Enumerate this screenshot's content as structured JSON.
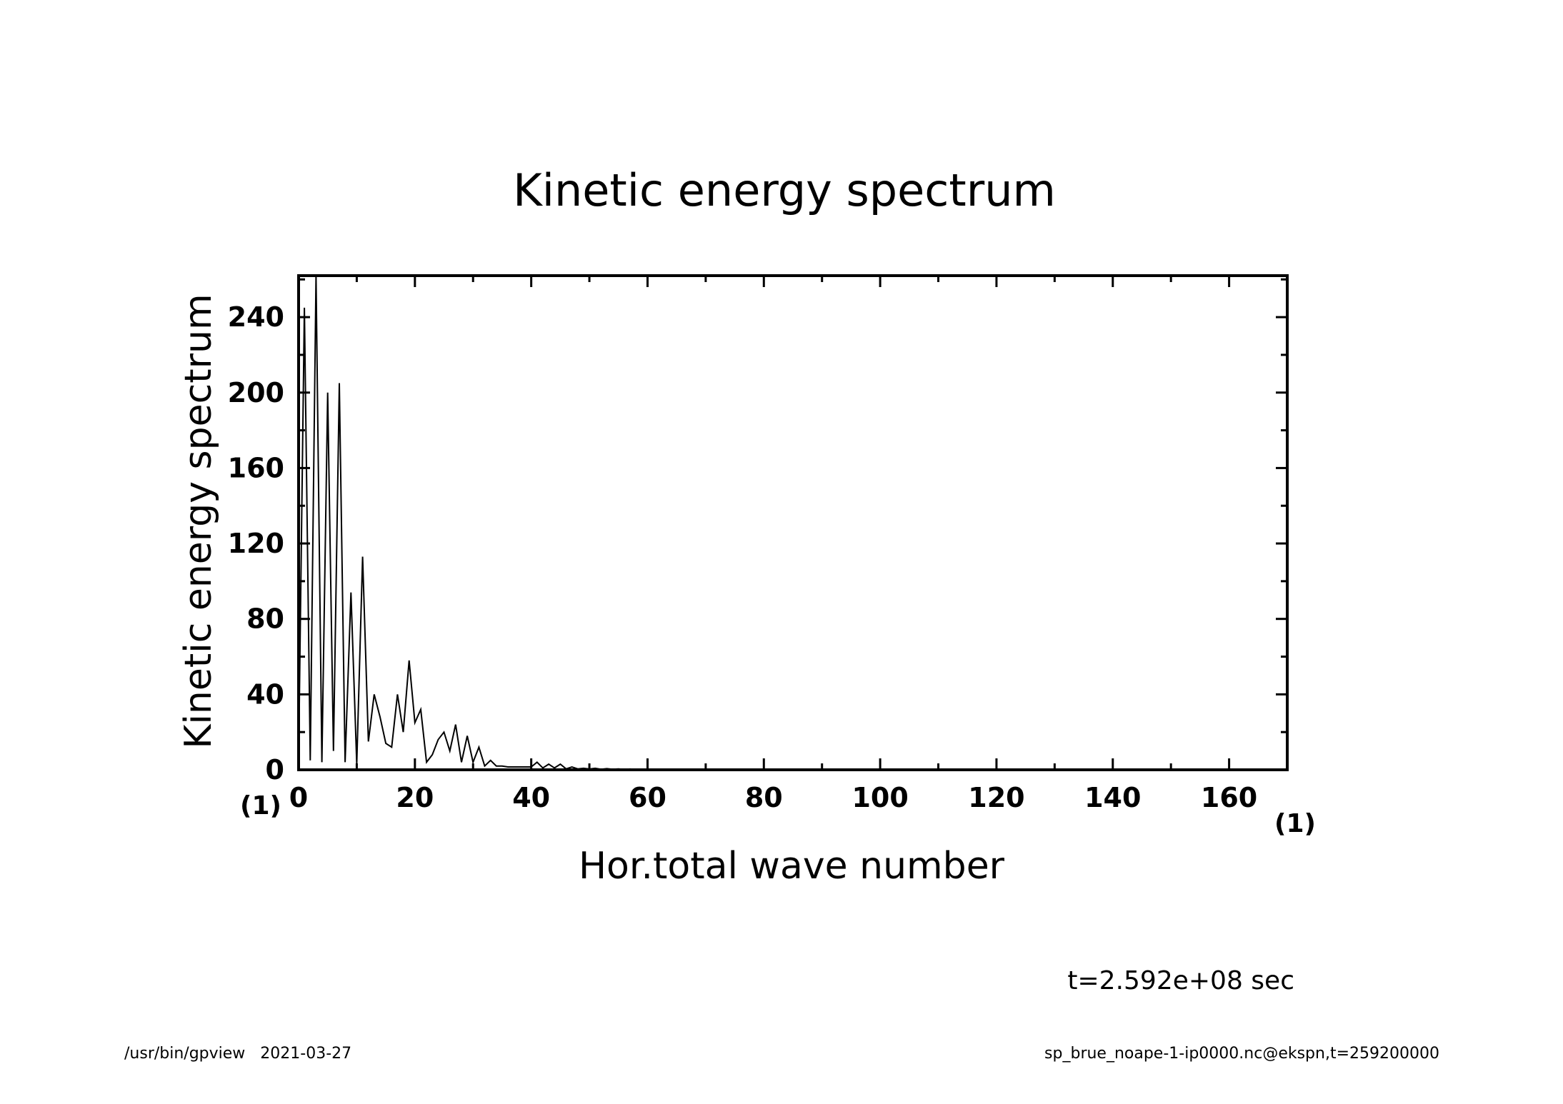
{
  "chart_data": {
    "type": "line",
    "title": "Kinetic energy spectrum",
    "xlabel": "Hor.total wave number",
    "ylabel": "Kinetic energy spectrum",
    "x_unit": "(1)",
    "y_unit": "(1)",
    "xlim": [
      0,
      170
    ],
    "ylim": [
      0,
      262
    ],
    "x_ticks": [
      0,
      20,
      40,
      60,
      80,
      100,
      120,
      140,
      160
    ],
    "y_ticks": [
      0,
      40,
      80,
      120,
      160,
      200,
      240
    ],
    "x_minor_step": 10,
    "y_minor_step": 20,
    "grid": false,
    "series": [
      {
        "values_x": [
          0,
          1,
          2,
          3,
          4,
          5,
          6,
          7,
          8,
          9,
          10,
          11,
          12,
          13,
          14,
          15,
          16,
          17,
          18,
          19,
          20,
          21,
          22,
          23,
          24,
          25,
          26,
          27,
          28,
          29,
          30,
          31,
          32,
          33,
          34,
          35,
          36,
          37,
          38,
          39,
          40,
          41,
          42,
          43,
          44,
          45,
          46,
          47,
          48,
          49,
          50,
          51,
          52,
          53,
          54,
          55,
          56,
          57,
          58,
          59,
          60,
          65,
          70,
          80,
          90,
          100,
          110,
          120,
          130,
          140,
          150,
          160,
          170
        ],
        "values_y": [
          5,
          245,
          5,
          262,
          4,
          200,
          10,
          205,
          4,
          94,
          3,
          113,
          15,
          40,
          28,
          14,
          12,
          40,
          20,
          58,
          25,
          32,
          4,
          8,
          16,
          20,
          10,
          24,
          4,
          18,
          4,
          12,
          2,
          5,
          2,
          2,
          1.5,
          1.5,
          1.5,
          1.5,
          1.5,
          4,
          1,
          3,
          1,
          3,
          0.5,
          1.5,
          0.5,
          0.8,
          0.4,
          0.8,
          0.3,
          0.6,
          0.3,
          0.5,
          0.2,
          0.4,
          0.2,
          0.3,
          0.2,
          0.1,
          0.05,
          0.02,
          0.01,
          0,
          0,
          0,
          0,
          0,
          0,
          0,
          0
        ]
      }
    ]
  },
  "annotation": {
    "time": "t=2.592e+08 sec"
  },
  "footer": {
    "left": "/usr/bin/gpview   2021-03-27",
    "right": "sp_brue_noape-1-ip0000.nc@ekspn,t=259200000"
  }
}
